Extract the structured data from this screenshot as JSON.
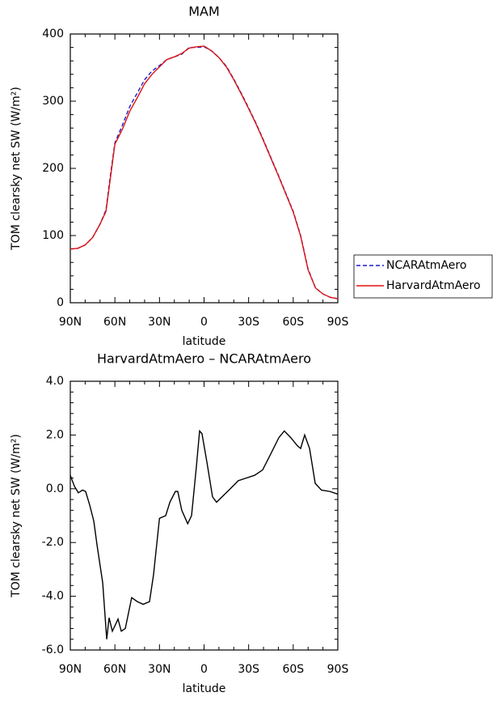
{
  "chart_data": [
    {
      "type": "line",
      "title": "MAM",
      "ylabel": "TOM clearsky net SW (W/m²)",
      "xlabel": "latitude",
      "x": [
        90,
        85,
        80,
        75,
        70,
        66,
        63,
        60,
        55,
        50,
        45,
        40,
        35,
        30,
        25,
        20,
        15,
        10,
        5,
        0,
        -5,
        -10,
        -15,
        -20,
        -25,
        -30,
        -35,
        -40,
        -45,
        -50,
        -55,
        -60,
        -65,
        -70,
        -75,
        -80,
        -85,
        -90
      ],
      "series": [
        {
          "name": "NCARAtmAero",
          "color": "#1a1acc",
          "line_style": "dashed",
          "values": [
            80,
            81,
            86,
            97,
            117,
            138,
            190,
            238,
            264,
            292,
            312,
            332,
            345,
            353,
            362,
            366,
            370,
            380,
            380,
            381,
            375,
            365,
            352,
            333,
            312,
            290,
            267,
            242,
            216,
            190,
            163,
            136,
            100,
            50,
            22,
            13,
            8,
            6
          ]
        },
        {
          "name": "HarvardAtmAero",
          "color": "#dd1111",
          "line_style": "solid",
          "values": [
            80,
            81,
            86,
            97,
            117,
            136,
            186,
            236,
            258,
            285,
            305,
            326,
            340,
            351,
            362,
            366,
            371,
            379,
            381,
            382,
            375,
            365,
            351,
            332,
            311,
            289,
            266,
            241,
            215,
            189,
            162,
            135,
            99,
            49,
            22,
            13,
            8,
            6
          ]
        }
      ],
      "xlim": [
        90,
        -90
      ],
      "xticks": [
        {
          "value": 90,
          "label": "90N"
        },
        {
          "value": 60,
          "label": "60N"
        },
        {
          "value": 30,
          "label": "30N"
        },
        0,
        {
          "value": -30,
          "label": "30S"
        },
        {
          "value": -60,
          "label": "60S"
        },
        {
          "value": -90,
          "label": "90S"
        }
      ],
      "ylim": [
        0,
        400
      ],
      "yticks": [
        0,
        100,
        200,
        300,
        400
      ],
      "legend": "right"
    },
    {
      "type": "line",
      "title": "HarvardAtmAero – NCARAtmAero",
      "ylabel": "TOM clearsky net SW (W/m²)",
      "xlabel": "latitude",
      "x": [
        90,
        87.3,
        84.6,
        81.8,
        79.7,
        77,
        74.2,
        72,
        68.2,
        65.5,
        63.9,
        61.7,
        57.9,
        55.7,
        53,
        48.7,
        44.9,
        41,
        36.7,
        34,
        30,
        25.8,
        23,
        19.3,
        17.7,
        15,
        11,
        8.4,
        5.2,
        3,
        1.4,
        -1.9,
        -5.7,
        -8.4,
        -17.7,
        -23,
        -28.5,
        -34,
        -39.4,
        -44.9,
        -50.3,
        -54,
        -58.4,
        -62.8,
        -65,
        -67.7,
        -71,
        -74.8,
        -79,
        -84.6,
        -90
      ],
      "series": [
        {
          "color": "#000000",
          "line_style": "solid",
          "values": [
            0.5,
            0.1,
            -0.15,
            -0.05,
            -0.1,
            -0.6,
            -1.2,
            -2.1,
            -3.5,
            -5.6,
            -4.8,
            -5.3,
            -4.85,
            -5.3,
            -5.2,
            -4.05,
            -4.2,
            -4.3,
            -4.2,
            -3.2,
            -1.1,
            -1.0,
            -0.5,
            -0.1,
            -0.1,
            -0.8,
            -1.3,
            -1.0,
            0.8,
            2.15,
            2.05,
            1.0,
            -0.3,
            -0.5,
            0,
            0.3,
            0.4,
            0.5,
            0.7,
            1.3,
            1.9,
            2.15,
            1.9,
            1.6,
            1.5,
            2.0,
            1.5,
            0.2,
            -0.05,
            -0.1,
            -0.2
          ]
        }
      ],
      "xlim": [
        90,
        -90
      ],
      "xticks": [
        {
          "value": 90,
          "label": "90N"
        },
        {
          "value": 60,
          "label": "60N"
        },
        {
          "value": 30,
          "label": "30N"
        },
        0,
        {
          "value": -30,
          "label": "30S"
        },
        {
          "value": -60,
          "label": "60S"
        },
        {
          "value": -90,
          "label": "90S"
        }
      ],
      "ylim": [
        -6,
        4
      ],
      "yticks": [
        {
          "value": -6,
          "label": "-6.0"
        },
        {
          "value": -4,
          "label": "-4.0"
        },
        {
          "value": -2,
          "label": "-2.0"
        },
        {
          "value": 0,
          "label": "0.0"
        },
        {
          "value": 2,
          "label": "2.0"
        },
        {
          "value": 4,
          "label": "4.0"
        }
      ]
    }
  ]
}
